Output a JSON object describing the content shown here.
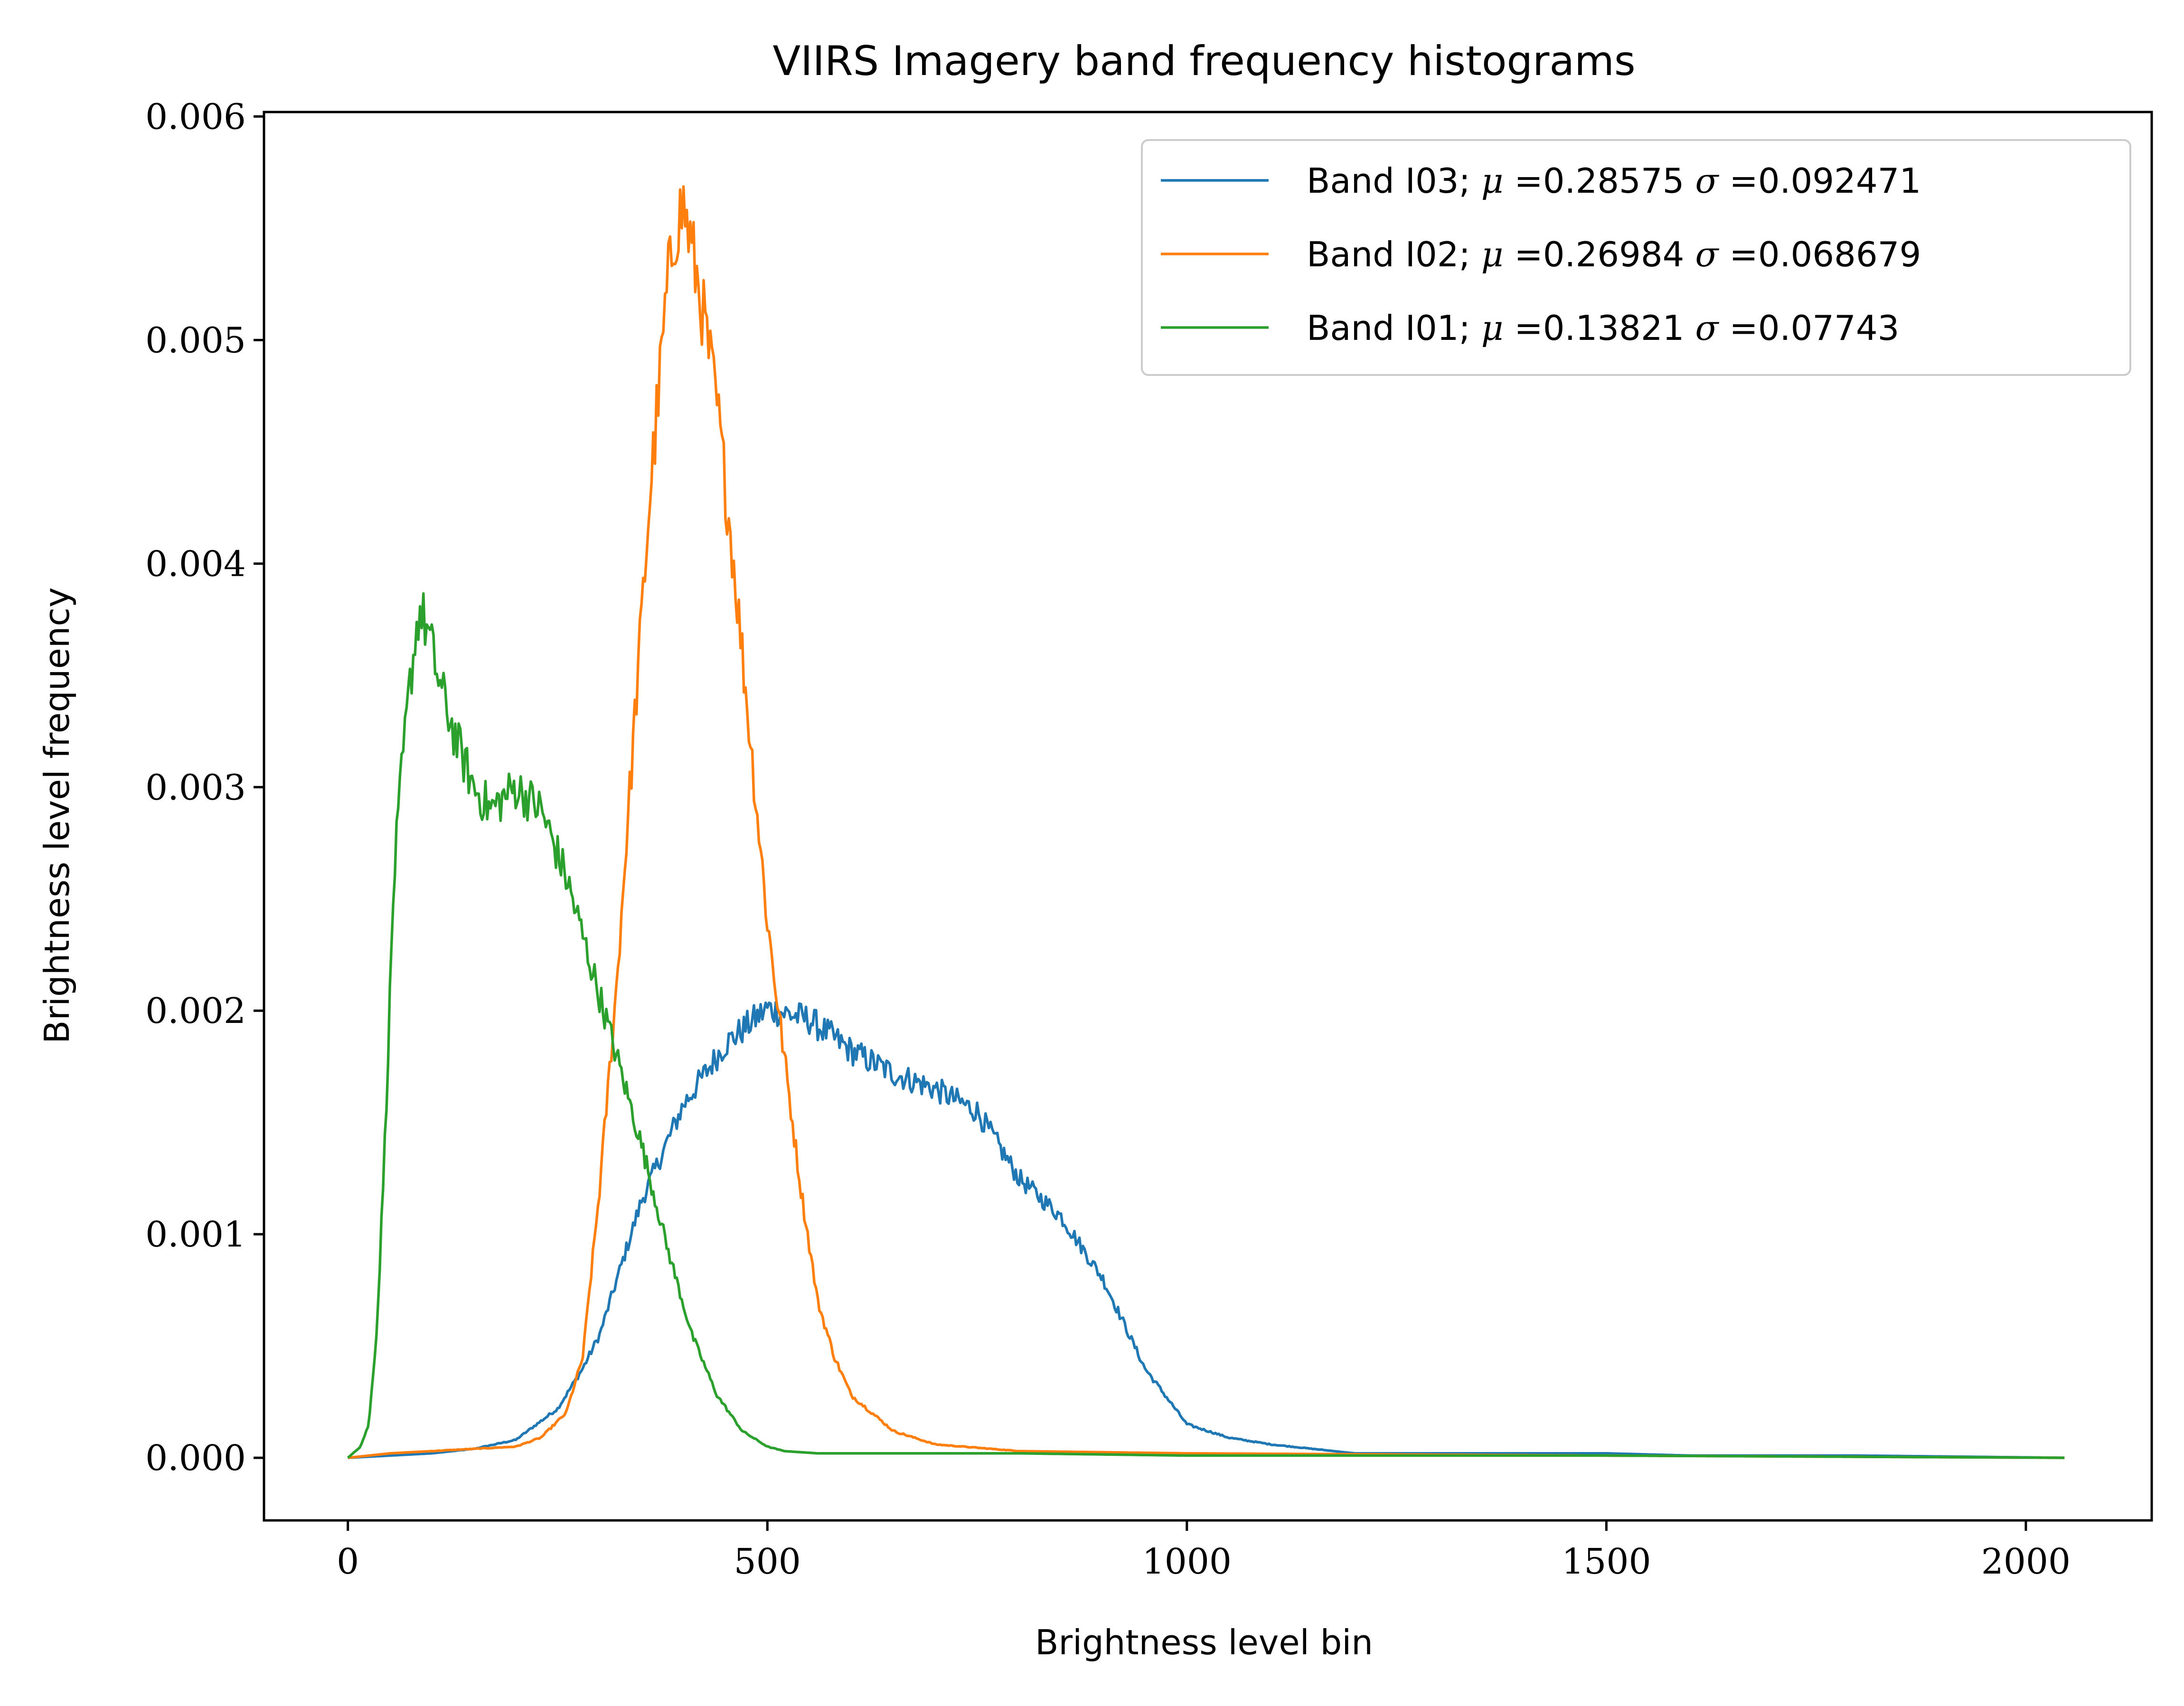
{
  "chart_data": {
    "type": "line",
    "title": "VIIRS Imagery band frequency histograms",
    "xlabel": "Brightness level bin",
    "ylabel": "Brightness level frequency",
    "xlim": [
      -100,
      2150
    ],
    "ylim": [
      -0.00028,
      0.00602
    ],
    "xticks": [
      0,
      500,
      1000,
      1500,
      2000
    ],
    "xtick_labels": [
      "0",
      "500",
      "1000",
      "1500",
      "2000"
    ],
    "yticks": [
      0,
      0.001,
      0.002,
      0.003,
      0.004,
      0.005,
      0.006
    ],
    "ytick_labels": [
      "0.000",
      "0.001",
      "0.002",
      "0.003",
      "0.004",
      "0.005",
      "0.006"
    ],
    "grid": false,
    "legend_position": "top-right",
    "series": [
      {
        "name": "Band I03",
        "legend_label": "Band I03; μ =0.28575 σ =0.092471",
        "legend_prefix": "Band I03; ",
        "legend_mu": "μ",
        "legend_mu_value": " =0.28575 ",
        "legend_sigma": "σ",
        "legend_sigma_value": " =0.092471",
        "color": "#1f77b4",
        "x": [
          0,
          50,
          100,
          150,
          200,
          250,
          280,
          300,
          350,
          400,
          450,
          500,
          550,
          600,
          650,
          700,
          750,
          800,
          850,
          900,
          950,
          1000,
          1050,
          1100,
          1150,
          1200,
          1300,
          1400,
          1500,
          1600,
          1800,
          2047
        ],
        "y": [
          0.0,
          1e-05,
          2e-05,
          4e-05,
          8e-05,
          0.00022,
          0.0004,
          0.00055,
          0.00115,
          0.00158,
          0.00185,
          0.00201,
          0.00196,
          0.00182,
          0.00172,
          0.00165,
          0.00155,
          0.00125,
          0.00108,
          0.0008,
          0.0004,
          0.00015,
          9e-05,
          6e-05,
          4e-05,
          2e-05,
          2e-05,
          2e-05,
          2e-05,
          1e-05,
          1e-05,
          0.0
        ]
      },
      {
        "name": "Band I02",
        "legend_label": "Band I02; μ =0.26984 σ =0.068679",
        "legend_prefix": "Band I02; ",
        "legend_mu": "μ",
        "legend_mu_value": " =0.26984 ",
        "legend_sigma": "σ",
        "legend_sigma_value": " =0.068679",
        "color": "#ff7f0e",
        "x": [
          0,
          50,
          100,
          150,
          200,
          230,
          260,
          280,
          300,
          320,
          340,
          360,
          380,
          390,
          400,
          410,
          420,
          440,
          460,
          480,
          500,
          520,
          540,
          560,
          580,
          600,
          650,
          700,
          800,
          1000,
          1500,
          2047
        ],
        "y": [
          0.0,
          2e-05,
          3e-05,
          4e-05,
          5e-05,
          9e-05,
          0.0002,
          0.00045,
          0.0012,
          0.0021,
          0.0032,
          0.0043,
          0.0052,
          0.0055,
          0.0056,
          0.0054,
          0.0052,
          0.0047,
          0.004,
          0.0032,
          0.0024,
          0.0018,
          0.0012,
          0.0007,
          0.00045,
          0.00028,
          0.00012,
          6e-05,
          3e-05,
          2e-05,
          1e-05,
          0.0
        ]
      },
      {
        "name": "Band I01",
        "legend_label": "Band I01; μ =0.13821 σ =0.07743",
        "legend_prefix": "Band I01; ",
        "legend_mu": "μ",
        "legend_mu_value": " =0.13821 ",
        "legend_sigma": "σ",
        "legend_sigma_value": " =0.07743",
        "color": "#2ca02c",
        "x": [
          0,
          15,
          25,
          35,
          45,
          55,
          65,
          75,
          85,
          95,
          110,
          130,
          150,
          170,
          200,
          230,
          260,
          290,
          320,
          350,
          380,
          410,
          440,
          470,
          500,
          520,
          560,
          600,
          800,
          1000,
          1500,
          2047
        ],
        "y": [
          0.0,
          5e-05,
          0.00015,
          0.0006,
          0.0015,
          0.0026,
          0.0031,
          0.0035,
          0.0038,
          0.0037,
          0.00345,
          0.0032,
          0.003,
          0.0029,
          0.003,
          0.0029,
          0.0026,
          0.0022,
          0.0018,
          0.0014,
          0.00095,
          0.00055,
          0.00028,
          0.00012,
          5e-05,
          3e-05,
          2e-05,
          2e-05,
          2e-05,
          1e-05,
          1e-05,
          0.0
        ]
      }
    ]
  }
}
